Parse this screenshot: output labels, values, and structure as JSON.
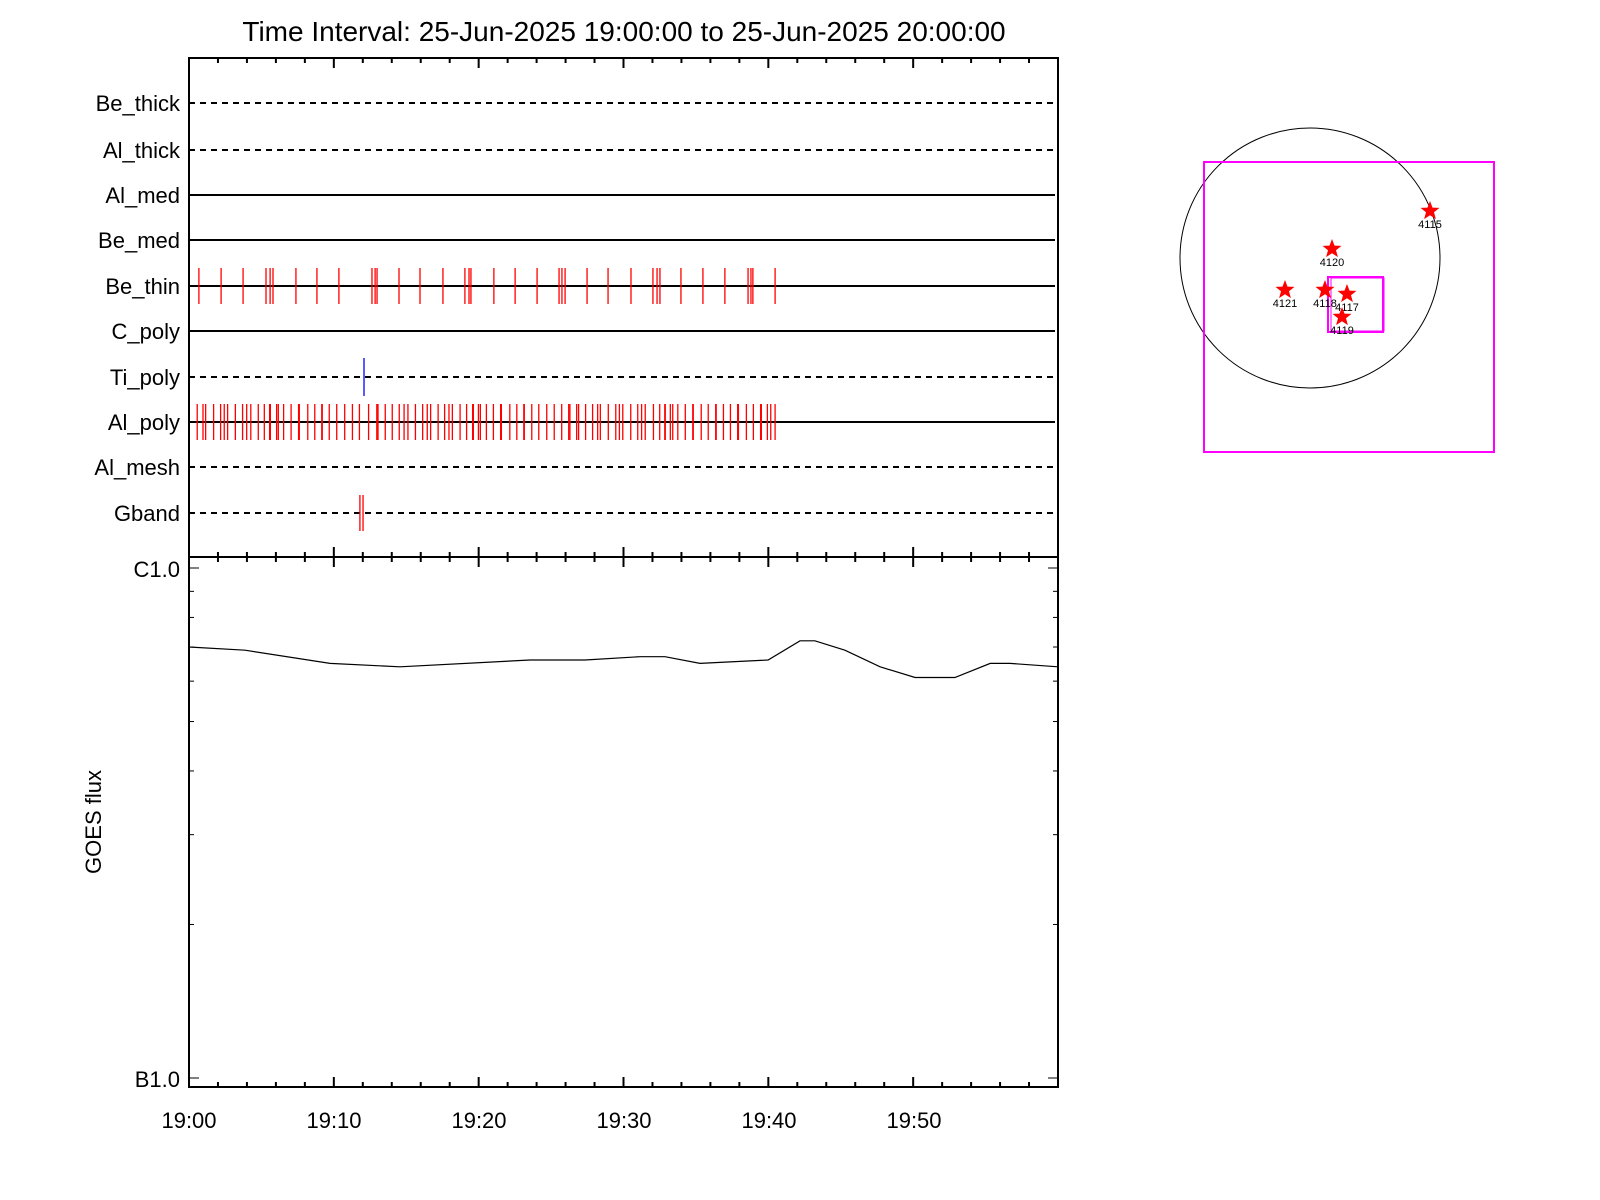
{
  "title": "Time Interval: 25-Jun-2025 19:00:00 to 25-Jun-2025 20:00:00",
  "colors": {
    "obs_tick": "#ff0000",
    "ti_tick": "#0000ff",
    "box": "#ff00ff",
    "star": "#ff0000",
    "axis": "#000000"
  },
  "chart_data": [
    {
      "type": "timeline",
      "xlim": [
        "19:00:00",
        "20:00:00"
      ],
      "channels": [
        {
          "name": "Be_thick",
          "line": "dashed",
          "obs": []
        },
        {
          "name": "Al_thick",
          "line": "dashed",
          "obs": []
        },
        {
          "name": "Al_med",
          "line": "solid",
          "obs": []
        },
        {
          "name": "Be_med",
          "line": "solid",
          "obs": []
        },
        {
          "name": "Be_thin",
          "line": "solid",
          "color": "#ff0000",
          "obs": [
            "19:00:41",
            "19:02:13",
            "19:03:44",
            "19:05:19",
            "19:05:36",
            "19:05:48",
            "19:07:23",
            "19:08:50",
            "19:10:21",
            "19:12:38",
            "19:12:51",
            "19:12:59",
            "19:14:30",
            "19:15:57",
            "19:17:32",
            "19:19:03",
            "19:19:20",
            "19:19:28",
            "19:21:03",
            "19:22:31",
            "19:24:02",
            "19:25:33",
            "19:25:45",
            "19:25:58",
            "19:27:29",
            "19:28:56",
            "19:30:31",
            "19:32:02",
            "19:32:19",
            "19:32:31",
            "19:33:58",
            "19:35:29",
            "19:37:00",
            "19:38:36",
            "19:38:48",
            "19:38:56",
            "19:40:28"
          ]
        },
        {
          "name": "C_poly",
          "line": "solid",
          "obs": []
        },
        {
          "name": "Ti_poly",
          "line": "dashed",
          "color": "#0000ff",
          "obs": [
            "19:12:05"
          ]
        },
        {
          "name": "Al_poly",
          "line": "solid",
          "color": "#ff0000",
          "obs": [
            "19:00:34",
            "19:00:58",
            "19:01:09",
            "19:01:42",
            "19:02:11",
            "19:02:26",
            "19:02:40",
            "19:03:12",
            "19:03:42",
            "19:03:59",
            "19:04:16",
            "19:04:47",
            "19:05:12",
            "19:05:34",
            "19:05:37",
            "19:06:03",
            "19:06:10",
            "19:06:32",
            "19:07:03",
            "19:07:34",
            "19:07:37",
            "19:08:12",
            "19:08:41",
            "19:09:10",
            "19:09:12",
            "19:09:41",
            "19:10:12",
            "19:10:45",
            "19:11:17",
            "19:11:46",
            "19:12:24",
            "19:12:58",
            "19:13:03",
            "19:13:33",
            "19:14:02",
            "19:14:31",
            "19:14:51",
            "19:15:07",
            "19:15:38",
            "19:16:08",
            "19:16:27",
            "19:16:41",
            "19:17:12",
            "19:17:39",
            "19:17:57",
            "19:18:11",
            "19:18:43",
            "19:19:10",
            "19:19:35",
            "19:19:38",
            "19:19:59",
            "19:20:07",
            "19:20:32",
            "19:21:01",
            "19:21:31",
            "19:21:34",
            "19:22:09",
            "19:22:38",
            "19:23:07",
            "19:23:09",
            "19:23:40",
            "19:24:09",
            "19:24:42",
            "19:25:13",
            "19:25:44",
            "19:26:13",
            "19:26:18",
            "19:26:46",
            "19:26:54",
            "19:27:23",
            "19:27:52",
            "19:28:13",
            "19:28:24",
            "19:28:57",
            "19:29:28",
            "19:29:43",
            "19:29:57",
            "19:30:30",
            "19:30:59",
            "19:31:15",
            "19:31:30",
            "19:32:04",
            "19:32:30",
            "19:32:51",
            "19:32:53",
            "19:33:14",
            "19:33:24",
            "19:33:45",
            "19:34:16",
            "19:34:47",
            "19:34:49",
            "19:35:22",
            "19:35:51",
            "19:36:22",
            "19:36:24",
            "19:36:54",
            "19:37:23",
            "19:37:53",
            "19:37:56",
            "19:38:29",
            "19:38:58",
            "19:39:28",
            "19:39:31",
            "19:39:56",
            "19:40:10",
            "19:40:28"
          ]
        },
        {
          "name": "Al_mesh",
          "line": "dashed",
          "obs": []
        },
        {
          "name": "Gband",
          "line": "dashed",
          "color": "#ff0000",
          "obs": [
            "19:11:48",
            "19:12:01"
          ]
        }
      ]
    },
    {
      "type": "line",
      "ylabel": "GOES flux",
      "yscale": "log",
      "ylim": [
        1e-07,
        1e-06
      ],
      "ytick_labels": [
        "B1.0",
        "C1.0"
      ],
      "xtick_labels": [
        "19:00",
        "19:10",
        "19:20",
        "19:30",
        "19:40",
        "19:50"
      ],
      "xlim": [
        "19:00:00",
        "20:00:00"
      ],
      "series": [
        {
          "x": [
            "19:00:00",
            "19:03:52",
            "19:09:44",
            "19:14:34",
            "19:23:33",
            "19:27:20",
            "19:31:08",
            "19:32:52",
            "19:35:17",
            "19:39:59",
            "19:42:11",
            "19:43:13",
            "19:45:17",
            "19:47:43",
            "19:50:08",
            "19:52:53",
            "19:55:19",
            "19:56:41",
            "20:00:00"
          ],
          "y": [
            7e-07,
            6.9e-07,
            6.5e-07,
            6.4e-07,
            6.6e-07,
            6.6e-07,
            6.7e-07,
            6.7e-07,
            6.5e-07,
            6.6e-07,
            7.2e-07,
            7.2e-07,
            6.9e-07,
            6.4e-07,
            6.1e-07,
            6.1e-07,
            6.5e-07,
            6.5e-07,
            6.4e-07
          ]
        }
      ]
    },
    {
      "type": "map",
      "regions": [
        "4115",
        "4120",
        "4121",
        "4118",
        "4117",
        "4119"
      ]
    }
  ]
}
